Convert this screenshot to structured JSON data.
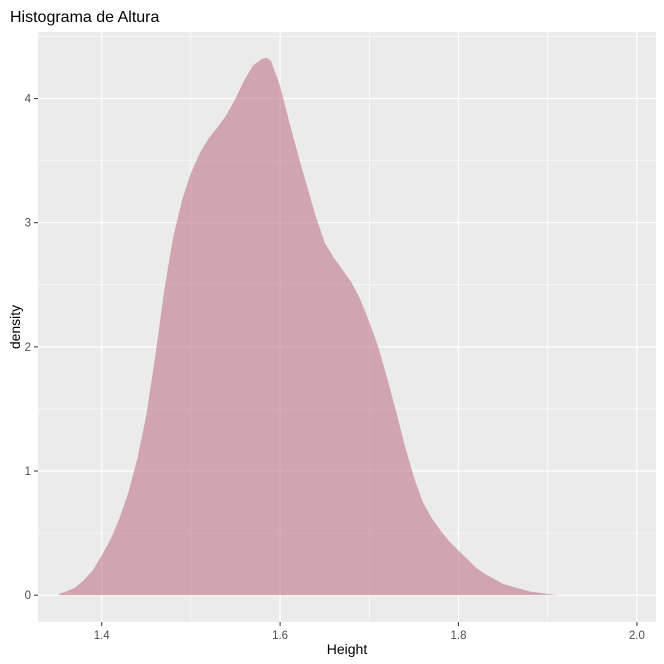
{
  "chart_data": {
    "type": "area",
    "title": "Histograma de Altura",
    "xlabel": "Height",
    "ylabel": "density",
    "xlim": [
      1.3286,
      2.0214
    ],
    "ylim": [
      -0.216,
      4.536
    ],
    "x_ticks": [
      "1.4",
      "1.6",
      "1.8",
      "2.0"
    ],
    "y_ticks": [
      "0",
      "1",
      "2",
      "3",
      "4"
    ],
    "grid": true,
    "legend": "none",
    "series": [
      {
        "x": [
          1.352,
          1.36,
          1.37,
          1.38,
          1.39,
          1.4,
          1.41,
          1.42,
          1.43,
          1.44,
          1.45,
          1.46,
          1.47,
          1.48,
          1.49,
          1.5,
          1.51,
          1.52,
          1.53,
          1.54,
          1.55,
          1.56,
          1.57,
          1.58,
          1.585,
          1.59,
          1.6,
          1.61,
          1.62,
          1.63,
          1.64,
          1.65,
          1.66,
          1.67,
          1.68,
          1.69,
          1.7,
          1.71,
          1.72,
          1.73,
          1.74,
          1.75,
          1.76,
          1.77,
          1.78,
          1.79,
          1.8,
          1.81,
          1.82,
          1.83,
          1.84,
          1.85,
          1.86,
          1.87,
          1.88,
          1.89,
          1.9,
          1.912
        ],
        "y": [
          0.01,
          0.03,
          0.06,
          0.12,
          0.2,
          0.32,
          0.45,
          0.62,
          0.83,
          1.1,
          1.45,
          1.92,
          2.45,
          2.88,
          3.18,
          3.4,
          3.56,
          3.68,
          3.77,
          3.87,
          4.0,
          4.15,
          4.27,
          4.32,
          4.33,
          4.3,
          4.1,
          3.82,
          3.55,
          3.3,
          3.05,
          2.84,
          2.72,
          2.62,
          2.52,
          2.38,
          2.2,
          2.0,
          1.75,
          1.48,
          1.2,
          0.95,
          0.75,
          0.62,
          0.52,
          0.43,
          0.36,
          0.29,
          0.22,
          0.17,
          0.13,
          0.09,
          0.07,
          0.05,
          0.03,
          0.02,
          0.01,
          0.0
        ]
      }
    ],
    "colors": {
      "fill": "#c27b8a",
      "panel": "#ebebeb",
      "grid": "#ffffff"
    }
  }
}
